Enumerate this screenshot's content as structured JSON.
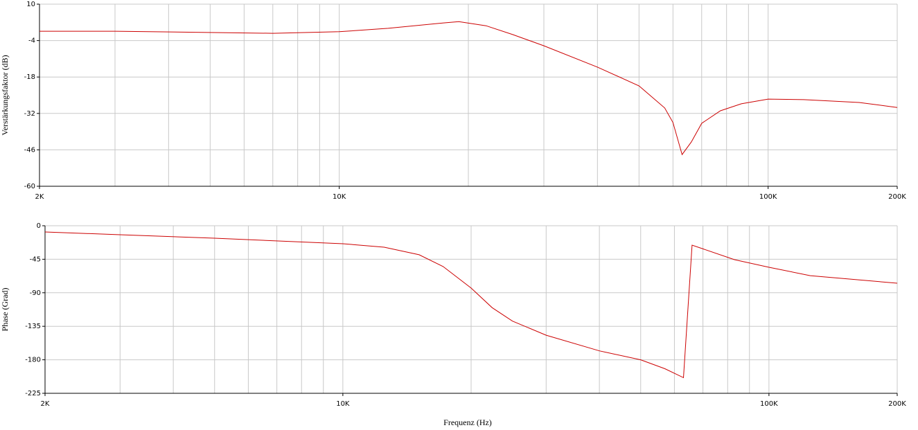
{
  "chart_data": [
    {
      "type": "line",
      "y_label": "Verstärkungsfaktor (dB)",
      "xscale": "log",
      "grid": true,
      "color": "#cc0000",
      "x": [
        2000,
        3000,
        7000,
        10000,
        13000,
        17500,
        19000,
        22000,
        25400,
        30000,
        40000,
        50000,
        57400,
        60000,
        63000,
        66200,
        70000,
        77400,
        86600,
        100000,
        121000,
        163000,
        200000
      ],
      "values": [
        -0.4,
        -0.4,
        -1.2,
        -0.6,
        0.7,
        2.8,
        3.3,
        1.7,
        -1.7,
        -6,
        -14.2,
        -21.4,
        -29.9,
        -35.5,
        -47.8,
        -43,
        -35.8,
        -31,
        -28.3,
        -26.5,
        -26.7,
        -27.8,
        -29.7
      ],
      "xlim": [
        2000,
        200000
      ],
      "xticks": [
        {
          "value": 2000,
          "label": "2K"
        },
        {
          "value": 10000,
          "label": "10K"
        },
        {
          "value": 100000,
          "label": "100K"
        },
        {
          "value": 200000,
          "label": "200K"
        }
      ],
      "minor_xticks": [
        3000,
        4000,
        5000,
        6000,
        7000,
        8000,
        9000,
        20000,
        30000,
        40000,
        50000,
        60000,
        70000,
        80000,
        90000
      ],
      "ylim": [
        -60,
        10
      ],
      "yticks": [
        10,
        -4,
        -18,
        -32,
        -46,
        -60
      ]
    },
    {
      "type": "line",
      "y_label": "Phase (Grad)",
      "x_label": "Frequenz (Hz)",
      "xscale": "log",
      "grid": true,
      "color": "#cc0000",
      "x": [
        2000,
        3000,
        5000,
        10000,
        12500,
        15100,
        17200,
        20000,
        22400,
        25000,
        30000,
        40000,
        50000,
        57000,
        63000,
        66000,
        83000,
        100000,
        125000,
        200000
      ],
      "values": [
        -8.4,
        -12.1,
        -16.7,
        -24.2,
        -28.8,
        -39,
        -54.9,
        -83.7,
        -110,
        -128,
        -147,
        -168,
        -180,
        -192,
        -204,
        -26,
        -45.6,
        -55.8,
        -67,
        -77.2
      ],
      "xlim": [
        2000,
        200000
      ],
      "xticks": [
        {
          "value": 2000,
          "label": "2K"
        },
        {
          "value": 10000,
          "label": "10K"
        },
        {
          "value": 100000,
          "label": "100K"
        },
        {
          "value": 200000,
          "label": "200K"
        }
      ],
      "minor_xticks": [
        3000,
        4000,
        5000,
        6000,
        7000,
        8000,
        9000,
        20000,
        30000,
        40000,
        50000,
        60000,
        70000,
        80000,
        90000
      ],
      "ylim": [
        -225,
        0
      ],
      "yticks": [
        0,
        -45,
        -90,
        -135,
        -180,
        -225
      ]
    }
  ]
}
